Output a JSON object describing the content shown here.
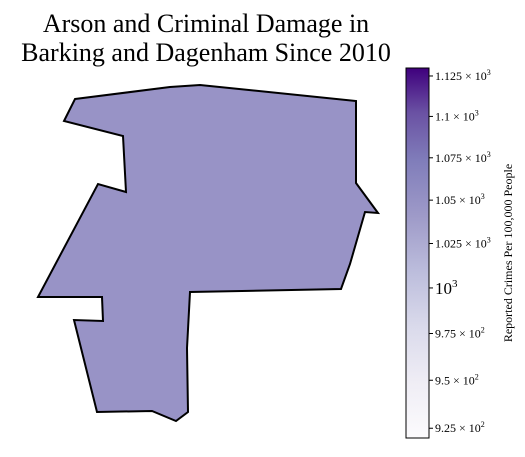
{
  "title_lines": [
    "Arson and Criminal Damage in",
    "Barking and Dagenham Since 2010"
  ],
  "map": {
    "region_fill": "#9893c6",
    "outline_color": "#000000"
  },
  "colorbar": {
    "label": "Reported Crimes Per 100,000 People",
    "scale": "log",
    "colormap": "Purples",
    "color_low": "#fcfbfd",
    "color_high": "#3f007d",
    "range": [
      920,
      1130
    ],
    "ticks": [
      {
        "value": 925,
        "mantissa": "9.25",
        "exp": "2"
      },
      {
        "value": 950,
        "mantissa": "9.5",
        "exp": "2"
      },
      {
        "value": 975,
        "mantissa": "9.75",
        "exp": "2"
      },
      {
        "value": 1000,
        "mantissa": "10",
        "exp": "3",
        "major": true
      },
      {
        "value": 1025,
        "mantissa": "1.025",
        "exp": "3"
      },
      {
        "value": 1050,
        "mantissa": "1.05",
        "exp": "3"
      },
      {
        "value": 1075,
        "mantissa": "1.075",
        "exp": "3"
      },
      {
        "value": 1100,
        "mantissa": "1.1",
        "exp": "3"
      },
      {
        "value": 1125,
        "mantissa": "1.125",
        "exp": "3"
      }
    ]
  },
  "chart_data": {
    "type": "choropleth",
    "title": "Arson and Criminal Damage in Barking and Dagenham Since 2010",
    "region": "Barking and Dagenham",
    "value_estimate": 1040,
    "colorbar_label": "Reported Crimes Per 100,000 People",
    "scale": "log",
    "range": [
      920,
      1130
    ]
  }
}
